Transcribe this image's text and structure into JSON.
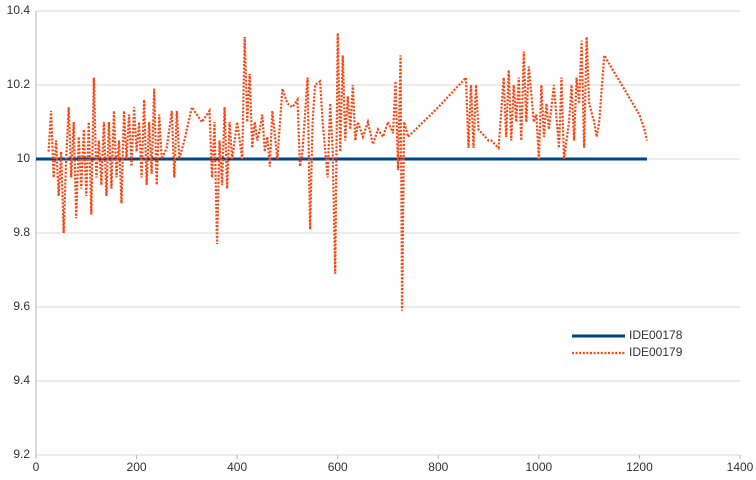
{
  "chart_data": {
    "type": "line",
    "xlim": [
      0,
      1400
    ],
    "xticks": [
      0,
      200,
      400,
      600,
      800,
      1000,
      1200,
      1400
    ],
    "ylim": [
      9.2,
      10.4
    ],
    "yticks": [
      9.2,
      9.4,
      9.6,
      9.8,
      10,
      10.2,
      10.4
    ],
    "grid": true,
    "legend": "right",
    "series": [
      {
        "name": "IDE00178",
        "color": "#004586",
        "style": "solid",
        "x": [
          0,
          1215
        ],
        "values": [
          10,
          10
        ]
      },
      {
        "name": "IDE00179",
        "color": "#ff420e",
        "style": "dotted",
        "x": [
          25,
          30,
          35,
          40,
          45,
          50,
          55,
          60,
          65,
          70,
          75,
          80,
          85,
          90,
          95,
          100,
          105,
          110,
          115,
          120,
          125,
          130,
          135,
          140,
          145,
          150,
          155,
          160,
          165,
          170,
          175,
          180,
          185,
          190,
          195,
          200,
          205,
          210,
          215,
          220,
          225,
          230,
          235,
          240,
          245,
          250,
          260,
          270,
          275,
          280,
          285,
          295,
          310,
          330,
          345,
          350,
          355,
          360,
          365,
          370,
          375,
          380,
          385,
          390,
          395,
          400,
          410,
          415,
          420,
          425,
          430,
          435,
          440,
          445,
          450,
          455,
          460,
          465,
          470,
          480,
          490,
          500,
          510,
          520,
          525,
          530,
          540,
          545,
          550,
          555,
          565,
          570,
          580,
          585,
          590,
          595,
          600,
          605,
          610,
          615,
          620,
          625,
          630,
          635,
          640,
          650,
          660,
          670,
          680,
          690,
          700,
          710,
          715,
          720,
          725,
          728,
          732,
          740,
          800,
          855,
          860,
          865,
          870,
          875,
          880,
          900,
          905,
          920,
          930,
          935,
          940,
          945,
          950,
          955,
          960,
          965,
          970,
          975,
          980,
          990,
          995,
          1000,
          1005,
          1010,
          1015,
          1020,
          1030,
          1040,
          1045,
          1050,
          1060,
          1065,
          1070,
          1075,
          1080,
          1085,
          1090,
          1095,
          1100,
          1110,
          1115,
          1120,
          1130,
          1200,
          1210,
          1215
        ],
        "values": [
          10.02,
          10.13,
          9.95,
          10.05,
          9.9,
          10.02,
          9.8,
          10.0,
          10.14,
          9.95,
          10.1,
          9.84,
          10.06,
          9.92,
          10.08,
          9.9,
          10.1,
          9.85,
          10.22,
          9.95,
          10.05,
          9.93,
          10.1,
          9.9,
          10.1,
          9.92,
          10.13,
          9.95,
          10.05,
          9.88,
          10.13,
          10.0,
          10.12,
          9.98,
          10.14,
          10.02,
          10.1,
          9.95,
          10.16,
          9.93,
          10.1,
          9.96,
          10.19,
          9.93,
          10.12,
          10.0,
          10.03,
          10.13,
          9.95,
          10.13,
          10.0,
          10.05,
          10.14,
          10.1,
          10.13,
          9.95,
          10.1,
          9.77,
          10.05,
          9.93,
          10.14,
          9.92,
          10.1,
          10.0,
          10.05,
          10.1,
          10.0,
          10.33,
          10.1,
          10.23,
          10.03,
          10.1,
          10.05,
          10.08,
          10.12,
          10.02,
          10.06,
          9.98,
          10.13,
          10.0,
          10.19,
          10.15,
          10.14,
          10.16,
          9.98,
          10.02,
          10.22,
          9.81,
          10.1,
          10.2,
          10.21,
          10.1,
          9.95,
          10.15,
          10.02,
          9.69,
          10.34,
          10.02,
          10.28,
          10.05,
          10.17,
          10.08,
          10.2,
          10.05,
          10.1,
          10.06,
          10.1,
          10.04,
          10.08,
          10.06,
          10.1,
          10.07,
          10.21,
          9.97,
          10.28,
          9.59,
          10.1,
          10.06,
          10.14,
          10.22,
          10.03,
          10.2,
          10.03,
          10.2,
          10.08,
          10.05,
          10.05,
          10.03,
          10.22,
          10.06,
          10.24,
          10.05,
          10.2,
          10.1,
          10.22,
          10.05,
          10.29,
          10.1,
          10.25,
          10.1,
          10.12,
          10.0,
          10.2,
          10.06,
          10.15,
          10.08,
          10.2,
          10.03,
          10.22,
          10.0,
          10.1,
          10.2,
          10.05,
          10.22,
          10.15,
          10.32,
          10.03,
          10.33,
          10.15,
          10.1,
          10.06,
          10.1,
          10.28,
          10.12,
          10.08,
          10.05
        ]
      }
    ]
  }
}
